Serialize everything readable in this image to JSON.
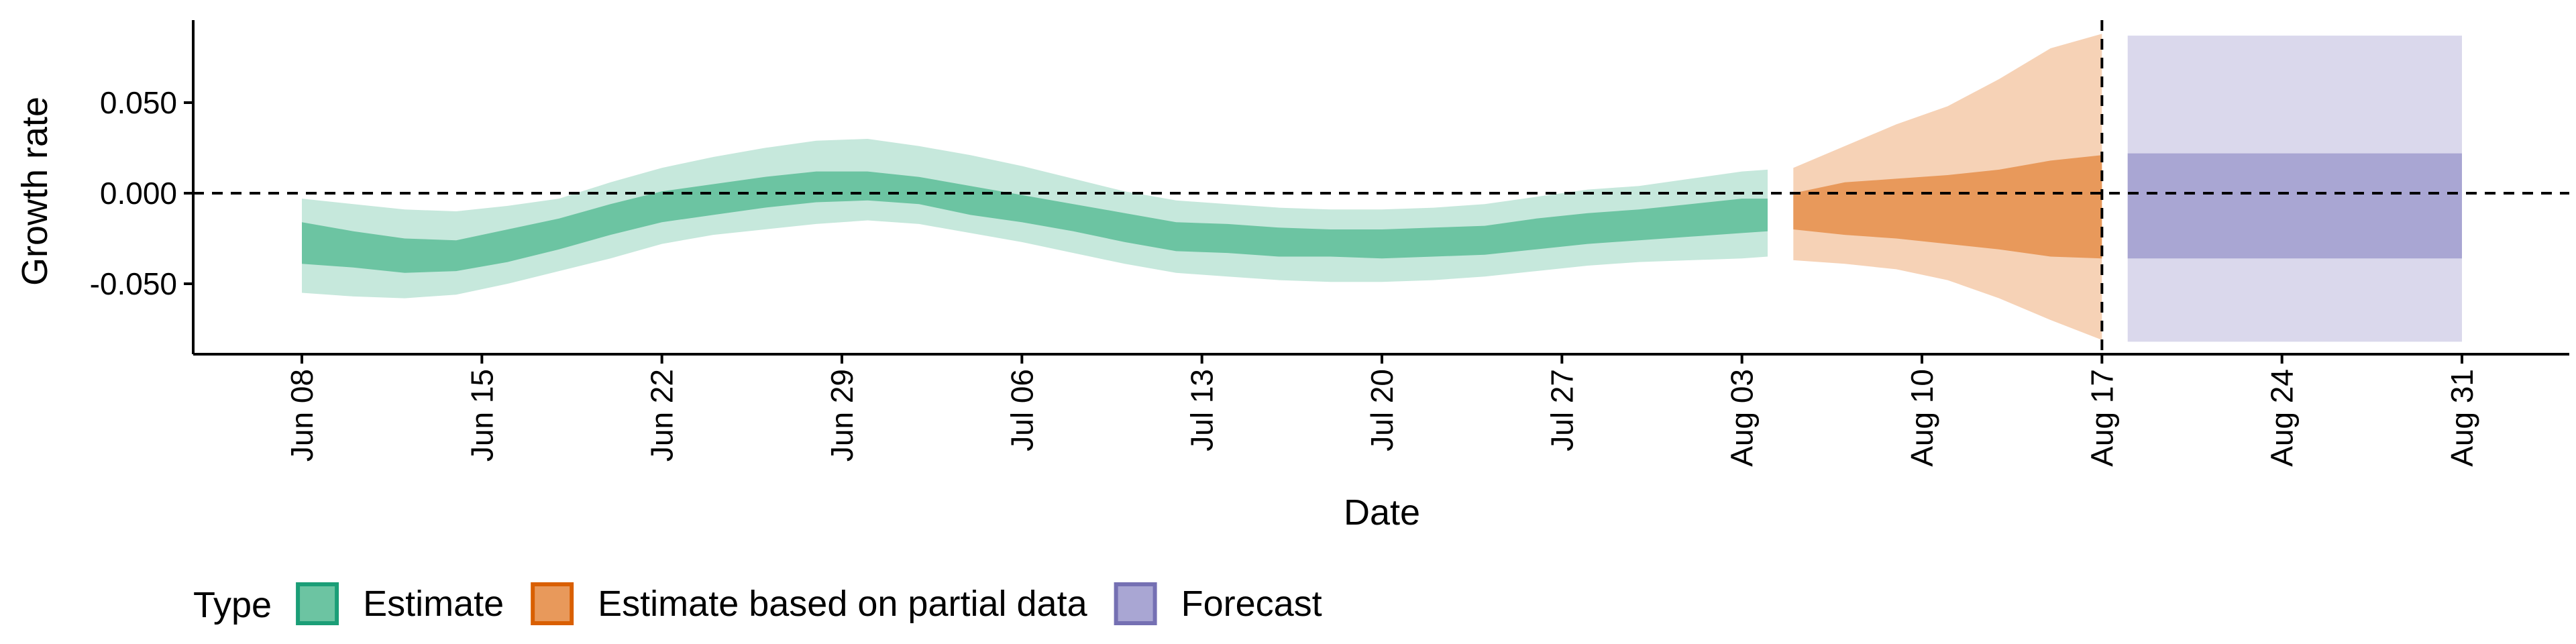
{
  "chart_data": {
    "type": "area",
    "xlabel": "Date",
    "ylabel": "Growth rate",
    "x_range": [
      "2021-06-05",
      "2021-09-05"
    ],
    "ylim": [
      -0.09,
      0.095
    ],
    "x_ticks": [
      {
        "date": "2021-06-08",
        "label": "Jun 08"
      },
      {
        "date": "2021-06-15",
        "label": "Jun 15"
      },
      {
        "date": "2021-06-22",
        "label": "Jun 22"
      },
      {
        "date": "2021-06-29",
        "label": "Jun 29"
      },
      {
        "date": "2021-07-06",
        "label": "Jul 06"
      },
      {
        "date": "2021-07-13",
        "label": "Jul 13"
      },
      {
        "date": "2021-07-20",
        "label": "Jul 20"
      },
      {
        "date": "2021-07-27",
        "label": "Jul 27"
      },
      {
        "date": "2021-08-03",
        "label": "Aug 03"
      },
      {
        "date": "2021-08-10",
        "label": "Aug 10"
      },
      {
        "date": "2021-08-17",
        "label": "Aug 17"
      },
      {
        "date": "2021-08-24",
        "label": "Aug 24"
      },
      {
        "date": "2021-08-31",
        "label": "Aug 31"
      }
    ],
    "y_ticks": [
      {
        "value": 0.05,
        "label": "0.050"
      },
      {
        "value": 0.0,
        "label": "0.000"
      },
      {
        "value": -0.05,
        "label": "-0.050"
      }
    ],
    "reference_lines": {
      "y": 0.0,
      "x": "2021-08-17",
      "style": "dashed"
    },
    "legend": {
      "title": "Type",
      "position": "bottom-left",
      "items": [
        {
          "label": "Estimate",
          "fill": "#6cc4a2",
          "stroke": "#1b9e77"
        },
        {
          "label": "Estimate based on partial data",
          "fill": "#e8995b",
          "stroke": "#d95f02"
        },
        {
          "label": "Forecast",
          "fill": "#a9a6d3",
          "stroke": "#7570b3"
        }
      ]
    },
    "series": [
      {
        "type": "Estimate",
        "outer_color": "#c6e8dc",
        "inner_color": "#6cc4a2",
        "points": [
          {
            "x": "2021-06-08",
            "outer_lo": -0.055,
            "outer_hi": -0.003,
            "inner_lo": -0.039,
            "inner_hi": -0.016
          },
          {
            "x": "2021-06-10",
            "outer_lo": -0.057,
            "outer_hi": -0.006,
            "inner_lo": -0.041,
            "inner_hi": -0.021
          },
          {
            "x": "2021-06-12",
            "outer_lo": -0.058,
            "outer_hi": -0.009,
            "inner_lo": -0.044,
            "inner_hi": -0.025
          },
          {
            "x": "2021-06-14",
            "outer_lo": -0.056,
            "outer_hi": -0.01,
            "inner_lo": -0.043,
            "inner_hi": -0.026
          },
          {
            "x": "2021-06-16",
            "outer_lo": -0.05,
            "outer_hi": -0.007,
            "inner_lo": -0.038,
            "inner_hi": -0.02
          },
          {
            "x": "2021-06-18",
            "outer_lo": -0.043,
            "outer_hi": -0.003,
            "inner_lo": -0.031,
            "inner_hi": -0.014
          },
          {
            "x": "2021-06-20",
            "outer_lo": -0.036,
            "outer_hi": 0.006,
            "inner_lo": -0.023,
            "inner_hi": -0.006
          },
          {
            "x": "2021-06-22",
            "outer_lo": -0.028,
            "outer_hi": 0.014,
            "inner_lo": -0.016,
            "inner_hi": 0.001
          },
          {
            "x": "2021-06-24",
            "outer_lo": -0.023,
            "outer_hi": 0.02,
            "inner_lo": -0.012,
            "inner_hi": 0.005
          },
          {
            "x": "2021-06-26",
            "outer_lo": -0.02,
            "outer_hi": 0.025,
            "inner_lo": -0.008,
            "inner_hi": 0.009
          },
          {
            "x": "2021-06-28",
            "outer_lo": -0.017,
            "outer_hi": 0.029,
            "inner_lo": -0.005,
            "inner_hi": 0.012
          },
          {
            "x": "2021-06-30",
            "outer_lo": -0.015,
            "outer_hi": 0.03,
            "inner_lo": -0.004,
            "inner_hi": 0.012
          },
          {
            "x": "2021-07-02",
            "outer_lo": -0.017,
            "outer_hi": 0.026,
            "inner_lo": -0.006,
            "inner_hi": 0.009
          },
          {
            "x": "2021-07-04",
            "outer_lo": -0.022,
            "outer_hi": 0.021,
            "inner_lo": -0.012,
            "inner_hi": 0.004
          },
          {
            "x": "2021-07-06",
            "outer_lo": -0.027,
            "outer_hi": 0.015,
            "inner_lo": -0.016,
            "inner_hi": -0.001
          },
          {
            "x": "2021-07-08",
            "outer_lo": -0.033,
            "outer_hi": 0.008,
            "inner_lo": -0.021,
            "inner_hi": -0.006
          },
          {
            "x": "2021-07-10",
            "outer_lo": -0.039,
            "outer_hi": 0.001,
            "inner_lo": -0.027,
            "inner_hi": -0.011
          },
          {
            "x": "2021-07-12",
            "outer_lo": -0.044,
            "outer_hi": -0.004,
            "inner_lo": -0.032,
            "inner_hi": -0.016
          },
          {
            "x": "2021-07-14",
            "outer_lo": -0.046,
            "outer_hi": -0.006,
            "inner_lo": -0.033,
            "inner_hi": -0.017
          },
          {
            "x": "2021-07-16",
            "outer_lo": -0.048,
            "outer_hi": -0.008,
            "inner_lo": -0.035,
            "inner_hi": -0.019
          },
          {
            "x": "2021-07-18",
            "outer_lo": -0.049,
            "outer_hi": -0.009,
            "inner_lo": -0.035,
            "inner_hi": -0.02
          },
          {
            "x": "2021-07-20",
            "outer_lo": -0.049,
            "outer_hi": -0.009,
            "inner_lo": -0.036,
            "inner_hi": -0.02
          },
          {
            "x": "2021-07-22",
            "outer_lo": -0.048,
            "outer_hi": -0.008,
            "inner_lo": -0.035,
            "inner_hi": -0.019
          },
          {
            "x": "2021-07-24",
            "outer_lo": -0.046,
            "outer_hi": -0.006,
            "inner_lo": -0.034,
            "inner_hi": -0.018
          },
          {
            "x": "2021-07-26",
            "outer_lo": -0.043,
            "outer_hi": -0.002,
            "inner_lo": -0.031,
            "inner_hi": -0.014
          },
          {
            "x": "2021-07-28",
            "outer_lo": -0.04,
            "outer_hi": 0.002,
            "inner_lo": -0.028,
            "inner_hi": -0.011
          },
          {
            "x": "2021-07-30",
            "outer_lo": -0.038,
            "outer_hi": 0.004,
            "inner_lo": -0.026,
            "inner_hi": -0.009
          },
          {
            "x": "2021-08-01",
            "outer_lo": -0.037,
            "outer_hi": 0.008,
            "inner_lo": -0.024,
            "inner_hi": -0.006
          },
          {
            "x": "2021-08-03",
            "outer_lo": -0.036,
            "outer_hi": 0.012,
            "inner_lo": -0.022,
            "inner_hi": -0.003
          },
          {
            "x": "2021-08-04",
            "outer_lo": -0.035,
            "outer_hi": 0.013,
            "inner_lo": -0.021,
            "inner_hi": -0.003
          }
        ]
      },
      {
        "type": "Estimate based on partial data",
        "outer_color": "#f6d2b6",
        "inner_color": "#e8995b",
        "points": [
          {
            "x": "2021-08-05",
            "outer_lo": -0.037,
            "outer_hi": 0.014,
            "inner_lo": -0.02,
            "inner_hi": 0.0
          },
          {
            "x": "2021-08-07",
            "outer_lo": -0.039,
            "outer_hi": 0.026,
            "inner_lo": -0.023,
            "inner_hi": 0.006
          },
          {
            "x": "2021-08-09",
            "outer_lo": -0.042,
            "outer_hi": 0.038,
            "inner_lo": -0.025,
            "inner_hi": 0.008
          },
          {
            "x": "2021-08-11",
            "outer_lo": -0.048,
            "outer_hi": 0.048,
            "inner_lo": -0.028,
            "inner_hi": 0.01
          },
          {
            "x": "2021-08-13",
            "outer_lo": -0.058,
            "outer_hi": 0.063,
            "inner_lo": -0.031,
            "inner_hi": 0.013
          },
          {
            "x": "2021-08-15",
            "outer_lo": -0.07,
            "outer_hi": 0.08,
            "inner_lo": -0.035,
            "inner_hi": 0.018
          },
          {
            "x": "2021-08-17",
            "outer_lo": -0.081,
            "outer_hi": 0.088,
            "inner_lo": -0.036,
            "inner_hi": 0.021
          }
        ]
      },
      {
        "type": "Forecast",
        "outer_color": "#dad8ec",
        "inner_color": "#a9a6d3",
        "points": [
          {
            "x": "2021-08-18",
            "outer_lo": -0.082,
            "outer_hi": 0.087,
            "inner_lo": -0.036,
            "inner_hi": 0.022
          },
          {
            "x": "2021-08-31",
            "outer_lo": -0.082,
            "outer_hi": 0.087,
            "inner_lo": -0.036,
            "inner_hi": 0.022
          }
        ]
      }
    ]
  }
}
